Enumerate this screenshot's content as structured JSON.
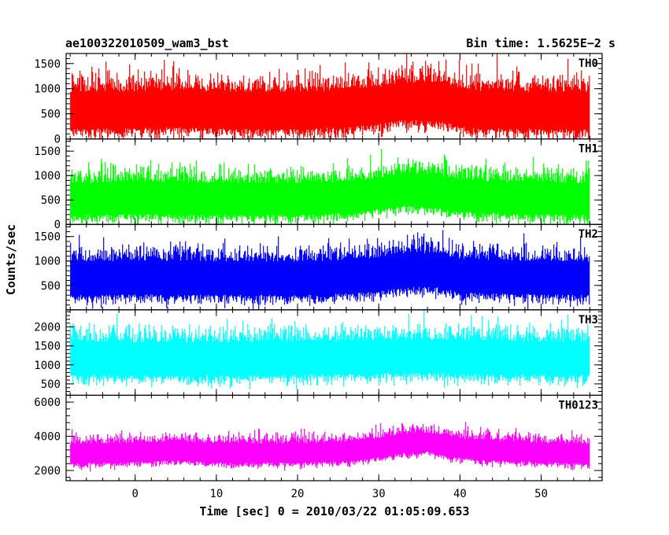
{
  "header": {
    "title": "ae100322010509_wam3_bst",
    "bin_time": "Bin time: 1.5625E−2 s"
  },
  "chart_data": {
    "type": "line",
    "xlabel": "Time [sec] 0 = 2010/03/22 01:05:09.653",
    "ylabel": "Counts/sec",
    "xlim": [
      -8.5,
      57.5
    ],
    "xticks": [
      0,
      10,
      20,
      30,
      40,
      50
    ],
    "x_minor_step": 2,
    "time_range": [
      -8.0,
      56.0
    ],
    "bin_time": 0.015625,
    "panels": [
      {
        "name": "TH0",
        "color": "#ff0000",
        "ylim": [
          0,
          1700
        ],
        "yticks": [
          0,
          500,
          1000,
          1500
        ],
        "baseline": [
          [
            -8,
            620
          ],
          [
            0,
            640
          ],
          [
            5,
            660
          ],
          [
            10,
            640
          ],
          [
            15,
            620
          ],
          [
            20,
            620
          ],
          [
            25,
            650
          ],
          [
            30,
            720
          ],
          [
            33,
            800
          ],
          [
            36,
            820
          ],
          [
            38,
            760
          ],
          [
            42,
            650
          ],
          [
            48,
            630
          ],
          [
            56,
            610
          ]
        ],
        "amplitude": 560
      },
      {
        "name": "TH1",
        "color": "#00ff00",
        "ylim": [
          0,
          1750
        ],
        "yticks": [
          0,
          500,
          1000,
          1500
        ],
        "baseline": [
          [
            -8,
            560
          ],
          [
            0,
            590
          ],
          [
            10,
            570
          ],
          [
            20,
            570
          ],
          [
            27,
            610
          ],
          [
            30,
            680
          ],
          [
            33,
            760
          ],
          [
            36,
            740
          ],
          [
            40,
            640
          ],
          [
            46,
            590
          ],
          [
            56,
            570
          ]
        ],
        "amplitude": 490
      },
      {
        "name": "TH2",
        "color": "#0000ff",
        "ylim": [
          0,
          1750
        ],
        "yticks": [
          500,
          1000,
          1500
        ],
        "baseline": [
          [
            -8,
            700
          ],
          [
            0,
            710
          ],
          [
            10,
            700
          ],
          [
            20,
            700
          ],
          [
            28,
            740
          ],
          [
            31,
            800
          ],
          [
            34,
            880
          ],
          [
            37,
            860
          ],
          [
            40,
            760
          ],
          [
            46,
            720
          ],
          [
            56,
            700
          ]
        ],
        "amplitude": 520
      },
      {
        "name": "TH3",
        "color": "#00ffff",
        "ylim": [
          200,
          2450
        ],
        "yticks": [
          500,
          1000,
          1500,
          2000
        ],
        "baseline": [
          [
            -8,
            1250
          ],
          [
            0,
            1230
          ],
          [
            10,
            1220
          ],
          [
            20,
            1240
          ],
          [
            30,
            1270
          ],
          [
            36,
            1300
          ],
          [
            42,
            1260
          ],
          [
            50,
            1240
          ],
          [
            56,
            1230
          ]
        ],
        "amplitude": 660
      },
      {
        "name": "TH0123",
        "color": "#ff00ff",
        "ylim": [
          1400,
          6400
        ],
        "yticks": [
          2000,
          4000,
          6000
        ],
        "baseline": [
          [
            -8,
            3050
          ],
          [
            0,
            3150
          ],
          [
            5,
            3250
          ],
          [
            10,
            3100
          ],
          [
            20,
            3100
          ],
          [
            26,
            3200
          ],
          [
            30,
            3400
          ],
          [
            33,
            3650
          ],
          [
            36,
            3750
          ],
          [
            39,
            3450
          ],
          [
            44,
            3250
          ],
          [
            50,
            3150
          ],
          [
            56,
            3050
          ]
        ],
        "amplitude": 850
      }
    ]
  }
}
